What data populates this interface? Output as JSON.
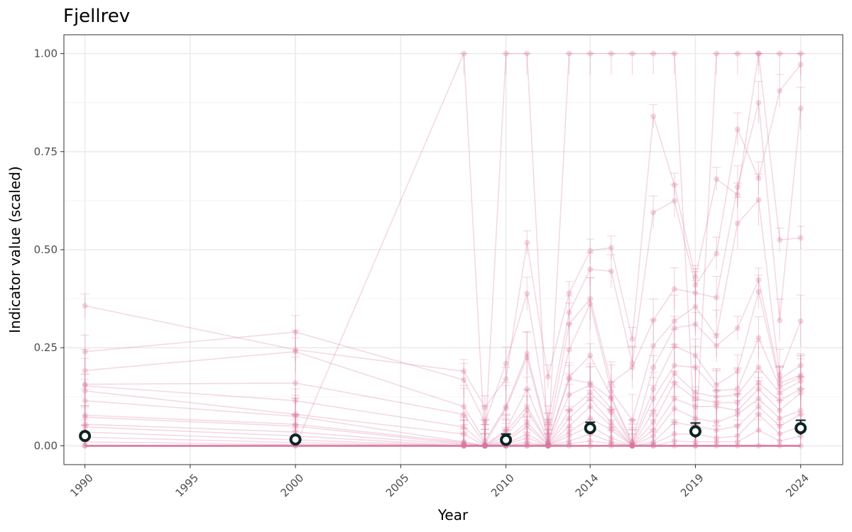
{
  "chart_data": {
    "type": "line",
    "title": "Fjellrev",
    "xlabel": "Year",
    "ylabel": "Indicator value (scaled)",
    "xlim": [
      1989,
      2026
    ],
    "ylim": [
      -0.048,
      1.048
    ],
    "x_ticks": [
      "1990",
      "1995",
      "2000",
      "2005",
      "2010",
      "2014",
      "2019",
      "2024"
    ],
    "x_tick_values": [
      1990,
      1995,
      2000,
      2005,
      2010,
      2014,
      2019,
      2024
    ],
    "y_ticks": [
      "0.00",
      "0.25",
      "0.50",
      "0.75",
      "1.00"
    ],
    "y_tick_values": [
      0,
      0.25,
      0.5,
      0.75,
      1.0
    ],
    "grid": true,
    "legend": "none",
    "colors": {
      "samples": "#d9779f",
      "summary": "#0d2523",
      "summary_fill": "#ffffff"
    },
    "summary_series": {
      "x": [
        1990,
        2000,
        2010,
        2014,
        2019,
        2024
      ],
      "y": [
        0.025,
        0.016,
        0.015,
        0.045,
        0.037,
        0.045
      ],
      "lower": [
        0.018,
        0.01,
        0.005,
        0.03,
        0.02,
        0.028
      ],
      "upper": [
        0.032,
        0.022,
        0.03,
        0.06,
        0.058,
        0.065
      ]
    },
    "sample_series": {
      "x": [
        1990,
        2000,
        2008,
        2009,
        2010,
        2011,
        2012,
        2013,
        2014,
        2015,
        2016,
        2017,
        2018,
        2019,
        2020,
        2021,
        2022,
        2023,
        2024
      ],
      "values": [
        [
          0.357,
          0.245,
          0.19,
          0.098,
          0.17,
          0.518,
          0.176,
          0.389,
          0.497,
          0.505,
          0.272,
          0.84,
          0.665,
          0.43,
          0.68,
          0.64,
          1.0,
          0.525,
          0.53
        ],
        [
          0.24,
          0.29,
          0.168,
          0.06,
          0.21,
          0.388,
          0.06,
          0.34,
          0.45,
          0.445,
          0.21,
          0.595,
          0.625,
          0.41,
          0.49,
          0.807,
          0.682,
          0.905,
          0.972
        ],
        [
          0.192,
          0.24,
          0.1,
          0.012,
          0.1,
          0.235,
          0.028,
          0.31,
          0.375,
          0.16,
          0.2,
          0.32,
          0.4,
          0.39,
          0.378,
          0.66,
          0.875,
          0.32,
          0.86
        ],
        [
          0.157,
          0.16,
          0.08,
          0.005,
          0.095,
          0.225,
          0.018,
          0.245,
          0.362,
          0.14,
          0.065,
          0.255,
          0.318,
          0.355,
          0.28,
          0.567,
          0.627,
          0.18,
          0.318
        ],
        [
          0.153,
          0.115,
          0.048,
          0.002,
          0.04,
          0.145,
          0.01,
          0.175,
          0.23,
          0.125,
          0.01,
          0.2,
          0.3,
          0.31,
          0.255,
          0.3,
          0.423,
          0.17,
          0.205
        ],
        [
          0.14,
          0.08,
          0.03,
          0.0,
          0.035,
          0.1,
          0.008,
          0.17,
          0.16,
          0.12,
          0.005,
          0.145,
          0.255,
          0.23,
          0.155,
          0.19,
          0.393,
          0.16,
          0.18
        ],
        [
          0.115,
          0.075,
          0.01,
          0.0,
          0.025,
          0.09,
          0.005,
          0.13,
          0.155,
          0.095,
          0.003,
          0.12,
          0.205,
          0.2,
          0.14,
          0.145,
          0.275,
          0.15,
          0.175
        ],
        [
          0.078,
          0.055,
          0.008,
          0.0,
          0.015,
          0.06,
          0.003,
          0.09,
          0.135,
          0.085,
          0.0,
          0.088,
          0.185,
          0.135,
          0.125,
          0.13,
          0.2,
          0.135,
          0.165
        ],
        [
          0.073,
          0.05,
          0.005,
          0.0,
          0.01,
          0.05,
          0.002,
          0.07,
          0.12,
          0.06,
          0.0,
          0.06,
          0.16,
          0.12,
          0.11,
          0.11,
          0.16,
          0.115,
          0.145
        ],
        [
          0.055,
          0.035,
          0.003,
          0.0,
          0.005,
          0.03,
          0.0,
          0.05,
          0.1,
          0.05,
          0.0,
          0.04,
          0.12,
          0.1,
          0.1,
          0.09,
          0.145,
          0.09,
          0.135
        ],
        [
          0.048,
          0.025,
          0.0,
          0.0,
          0.003,
          0.02,
          0.0,
          0.035,
          0.07,
          0.04,
          0.0,
          0.025,
          0.095,
          0.07,
          0.06,
          0.08,
          0.12,
          0.07,
          0.09
        ],
        [
          0.035,
          0.015,
          0.0,
          0.0,
          0.0,
          0.01,
          0.0,
          0.025,
          0.05,
          0.02,
          0.0,
          0.01,
          0.06,
          0.05,
          0.04,
          0.05,
          0.1,
          0.05,
          0.08
        ],
        [
          0.022,
          0.008,
          0.0,
          0.0,
          0.0,
          0.005,
          0.0,
          0.012,
          0.03,
          0.01,
          0.0,
          0.005,
          0.03,
          0.03,
          0.02,
          0.025,
          0.08,
          0.03,
          0.05
        ],
        [
          0.01,
          0.003,
          0.0,
          0.0,
          0.0,
          0.0,
          0.0,
          0.005,
          0.012,
          0.005,
          0.0,
          0.0,
          0.012,
          0.01,
          0.01,
          0.01,
          0.04,
          0.012,
          0.025
        ],
        [
          0.0,
          0.0,
          1.0,
          0.0,
          1.0,
          1.0,
          0.0,
          1.0,
          1.0,
          1.0,
          1.0,
          1.0,
          1.0,
          0.0,
          1.0,
          1.0,
          1.0,
          1.0,
          1.0
        ],
        [
          0.0,
          0.0,
          0.0,
          0.0,
          0.0,
          0.0,
          0.0,
          0.0,
          0.0,
          0.0,
          0.0,
          0.0,
          0.0,
          0.0,
          0.0,
          0.0,
          0.0,
          0.0,
          0.0
        ]
      ]
    }
  }
}
